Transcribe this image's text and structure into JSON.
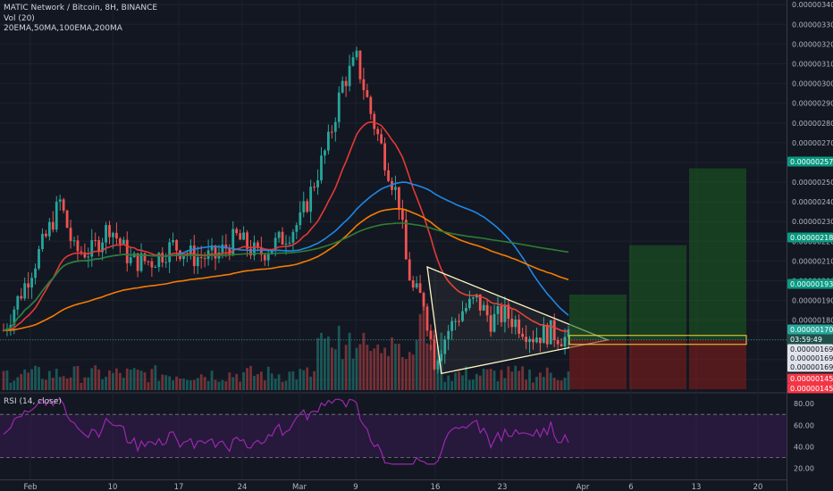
{
  "header": {
    "symbol_line": "MATIC Network / Bitcoin, 8H, BINANCE",
    "volume_line": "Vol (20)",
    "ma_line": "20EMA,50MA,100EMA,200MA",
    "rsi_line": "RSI (14, close)"
  },
  "colors": {
    "background": "#131722",
    "up": "#26a69a",
    "down": "#ef5350",
    "ema20": "#e53935",
    "ma50": "#1e88e5",
    "ema100": "#f57c00",
    "ma200": "#2e7d32",
    "triangle": "#fff9c4",
    "rsi": "#9c27b0",
    "long_zone": "#1b5e20",
    "short_zone": "#7f1d1d"
  },
  "price_axis": {
    "labels": [
      "0.00000340",
      "0.00000330",
      "0.00000320",
      "0.00000310",
      "0.00000300",
      "0.00000290",
      "0.00000280",
      "0.00000270",
      "0.00000260",
      "0.00000250",
      "0.00000240",
      "0.00000230",
      "0.00000220",
      "0.00000210",
      "0.00000200",
      "0.00000190",
      "0.00000180",
      "0.00000170",
      "0.00000160",
      "0.00000150"
    ],
    "markers": [
      {
        "value": "0.00000257",
        "kind": "green"
      },
      {
        "value": "0.00000218",
        "kind": "green"
      },
      {
        "value": "0.00000193",
        "kind": "green"
      },
      {
        "value": "0.00000170",
        "kind": "current"
      },
      {
        "value": "03:59:49",
        "kind": "timer"
      },
      {
        "value": "0.00000169",
        "kind": "gray"
      },
      {
        "value": "0.00000169",
        "kind": "gray"
      },
      {
        "value": "0.00000169",
        "kind": "gray"
      },
      {
        "value": "0.00000145",
        "kind": "red"
      },
      {
        "value": "0.00000145",
        "kind": "red"
      }
    ]
  },
  "rsi_axis": {
    "labels": [
      "80.00",
      "60.00",
      "40.00",
      "20.00"
    ]
  },
  "date_axis": {
    "labels": [
      "Feb",
      "10",
      "17",
      "24",
      "Mar",
      "9",
      "16",
      "23",
      "Apr",
      "6",
      "13",
      "20"
    ]
  },
  "chart_data": {
    "type": "candlestick",
    "timeframe": "8H",
    "ylim": [
      1.45e-06,
      3.41e-06
    ],
    "x_ticks": [
      "Feb",
      "10",
      "17",
      "24",
      "Mar",
      "9",
      "16",
      "23",
      "Apr",
      "6",
      "13",
      "20"
    ],
    "approx_close_path": [
      [
        0,
        1.75e-06
      ],
      [
        6,
        1.98e-06
      ],
      [
        12,
        2.22e-06
      ],
      [
        16,
        2.4e-06
      ],
      [
        20,
        2.15e-06
      ],
      [
        25,
        2.15e-06
      ],
      [
        30,
        2.28e-06
      ],
      [
        36,
        2.1e-06
      ],
      [
        42,
        2.1e-06
      ],
      [
        48,
        2.18e-06
      ],
      [
        54,
        2.12e-06
      ],
      [
        60,
        2.12e-06
      ],
      [
        66,
        2.22e-06
      ],
      [
        72,
        2.13e-06
      ],
      [
        78,
        2.2e-06
      ],
      [
        84,
        2.3e-06
      ],
      [
        88,
        2.5e-06
      ],
      [
        92,
        2.7e-06
      ],
      [
        96,
        3e-06
      ],
      [
        100,
        3.12e-06
      ],
      [
        104,
        2.85e-06
      ],
      [
        108,
        2.62e-06
      ],
      [
        112,
        2.4e-06
      ],
      [
        114,
        2.1e-06
      ],
      [
        116,
        1.95e-06
      ],
      [
        119,
        1.9e-06
      ],
      [
        122,
        1.6e-06
      ],
      [
        126,
        1.75e-06
      ],
      [
        130,
        1.85e-06
      ],
      [
        134,
        1.9e-06
      ],
      [
        138,
        1.8e-06
      ],
      [
        142,
        1.83e-06
      ],
      [
        146,
        1.78e-06
      ],
      [
        150,
        1.72e-06
      ],
      [
        155,
        1.74e-06
      ],
      [
        160,
        1.7e-06
      ]
    ],
    "indicators": [
      "20EMA",
      "50MA",
      "100EMA",
      "200MA"
    ],
    "triangle": {
      "apex_price": 1.7e-06,
      "upper_start": 2.07e-06,
      "lower_start": 1.53e-06
    },
    "targets": [
      1.93e-06,
      2.18e-06,
      2.57e-06
    ],
    "stop": 1.45e-06,
    "current_price": 1.7e-06,
    "rsi": {
      "range": [
        20,
        80
      ],
      "upper_band": 70,
      "lower_band": 30,
      "last": 44
    }
  }
}
